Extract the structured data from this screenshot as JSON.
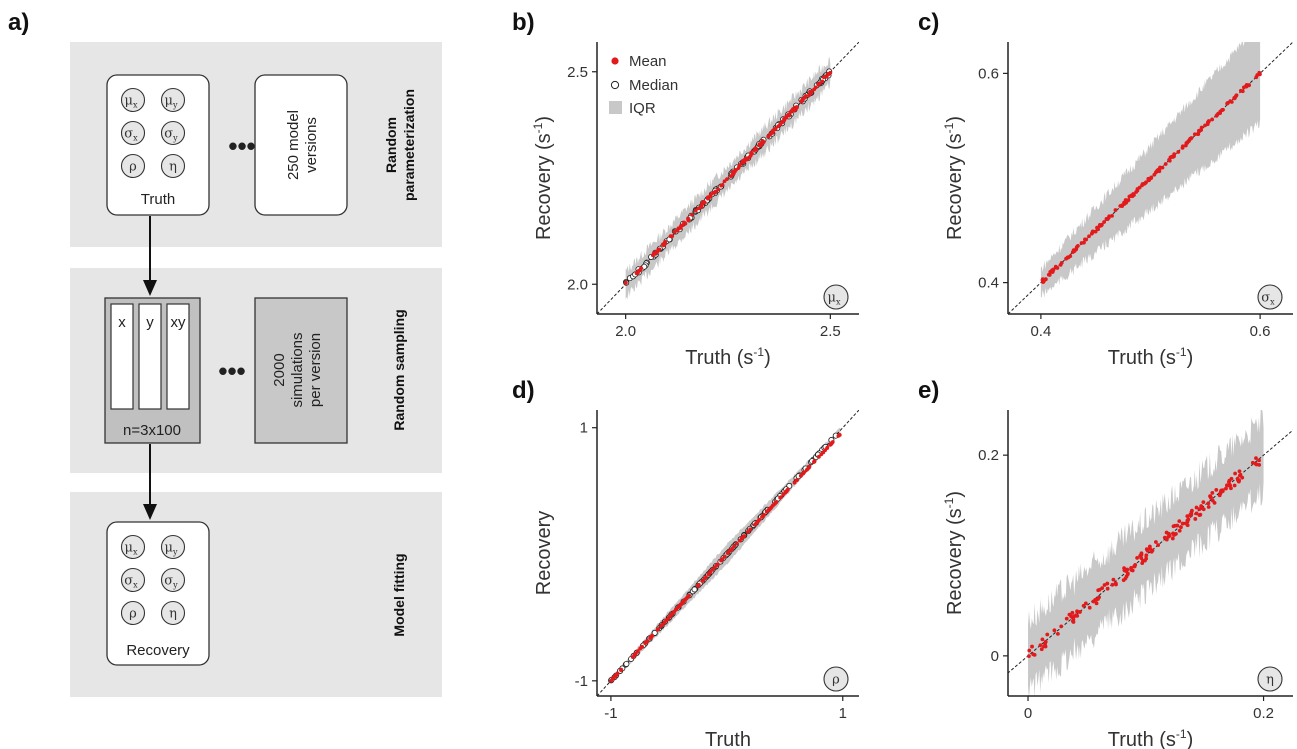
{
  "diagram": {
    "panel_label": "a)",
    "stages": [
      {
        "title_line1": "Random",
        "title_line2": "parameterization"
      },
      {
        "title_line1": "Random sampling"
      },
      {
        "title_line1": "Model fitting"
      }
    ],
    "params": [
      {
        "sym": "μ",
        "sub": "x"
      },
      {
        "sym": "μ",
        "sub": "y"
      },
      {
        "sym": "σ",
        "sub": "x"
      },
      {
        "sym": "σ",
        "sub": "y"
      },
      {
        "sym": "ρ",
        "sub": ""
      },
      {
        "sym": "η",
        "sub": ""
      }
    ],
    "truth_label": "Truth",
    "recovery_label": "Recovery",
    "versions_line1": "250 model",
    "versions_line2": "versions",
    "columns": [
      "x",
      "y",
      "xy"
    ],
    "n_label": "n=3x100",
    "sims_line1": "2000",
    "sims_line2": "simulations",
    "sims_line3": "per version",
    "ellipsis": "•••"
  },
  "legend": {
    "mean": "Mean",
    "median": "Median",
    "iqr": "IQR"
  },
  "colors": {
    "mean": "#e31a1c",
    "iqr": "#c8c8c8",
    "stage_bg": "#e6e6e6",
    "sims_box": "#c8c8c8"
  },
  "chart_data": [
    {
      "panel": "b)",
      "type": "scatter",
      "xlabel": "Truth (s",
      "ylabel": "Recovery (s",
      "unit_sup": "-1",
      "xlim": [
        1.93,
        2.57
      ],
      "ylim": [
        1.93,
        2.57
      ],
      "xticks": [
        2.0,
        2.5
      ],
      "yticks": [
        2.0,
        2.5
      ],
      "xtick_labels": [
        "2.0",
        "2.5"
      ],
      "ytick_labels": [
        "2.0",
        "2.5"
      ],
      "truth_range": [
        2.0,
        2.5
      ],
      "iqr_halfwidth": 0.03,
      "iqr_growth": 0,
      "median_points": true,
      "badge": {
        "sym": "μ",
        "sub": "x"
      },
      "legend": true
    },
    {
      "panel": "c)",
      "type": "scatter",
      "xlabel": "Truth (s",
      "ylabel": "Recovery (s",
      "unit_sup": "-1",
      "xlim": [
        0.37,
        0.63
      ],
      "ylim": [
        0.37,
        0.63
      ],
      "xticks": [
        0.4,
        0.6
      ],
      "yticks": [
        0.4,
        0.6
      ],
      "xtick_labels": [
        "0.4",
        "0.6"
      ],
      "ytick_labels": [
        "0.4",
        "0.6"
      ],
      "truth_range": [
        0.4,
        0.6
      ],
      "iqr_halfwidth": 0.013,
      "iqr_growth": 0.035,
      "median_points": false,
      "badge": {
        "sym": "σ",
        "sub": "x"
      },
      "legend": false
    },
    {
      "panel": "d)",
      "type": "scatter",
      "xlabel": "Truth",
      "ylabel": "Recovery",
      "unit_sup": "",
      "xlim": [
        -1.12,
        1.14
      ],
      "ylim": [
        -1.12,
        1.14
      ],
      "xticks": [
        -1,
        1
      ],
      "yticks": [
        -1,
        1
      ],
      "xtick_labels": [
        "-1",
        "1"
      ],
      "ytick_labels": [
        "-1",
        "1"
      ],
      "truth_range": [
        -1,
        0.98
      ],
      "iqr_halfwidth": 0.02,
      "iqr_growth": 0.06,
      "median_points": true,
      "badge": {
        "sym": "ρ",
        "sub": ""
      },
      "legend": false
    },
    {
      "panel": "e)",
      "type": "scatter",
      "xlabel": "Truth (s",
      "ylabel": "Recovery (s",
      "unit_sup": "-1",
      "xlim": [
        -0.017,
        0.225
      ],
      "ylim": [
        -0.04,
        0.245
      ],
      "xticks": [
        0,
        0.2
      ],
      "yticks": [
        0,
        0.2
      ],
      "xtick_labels": [
        "0",
        "0.2"
      ],
      "ytick_labels": [
        "0",
        "0.2"
      ],
      "truth_range": [
        0,
        0.2
      ],
      "iqr_halfwidth": 0.035,
      "iqr_growth": 0,
      "median_points": false,
      "badge": {
        "sym": "η",
        "sub": ""
      },
      "legend": false
    }
  ]
}
